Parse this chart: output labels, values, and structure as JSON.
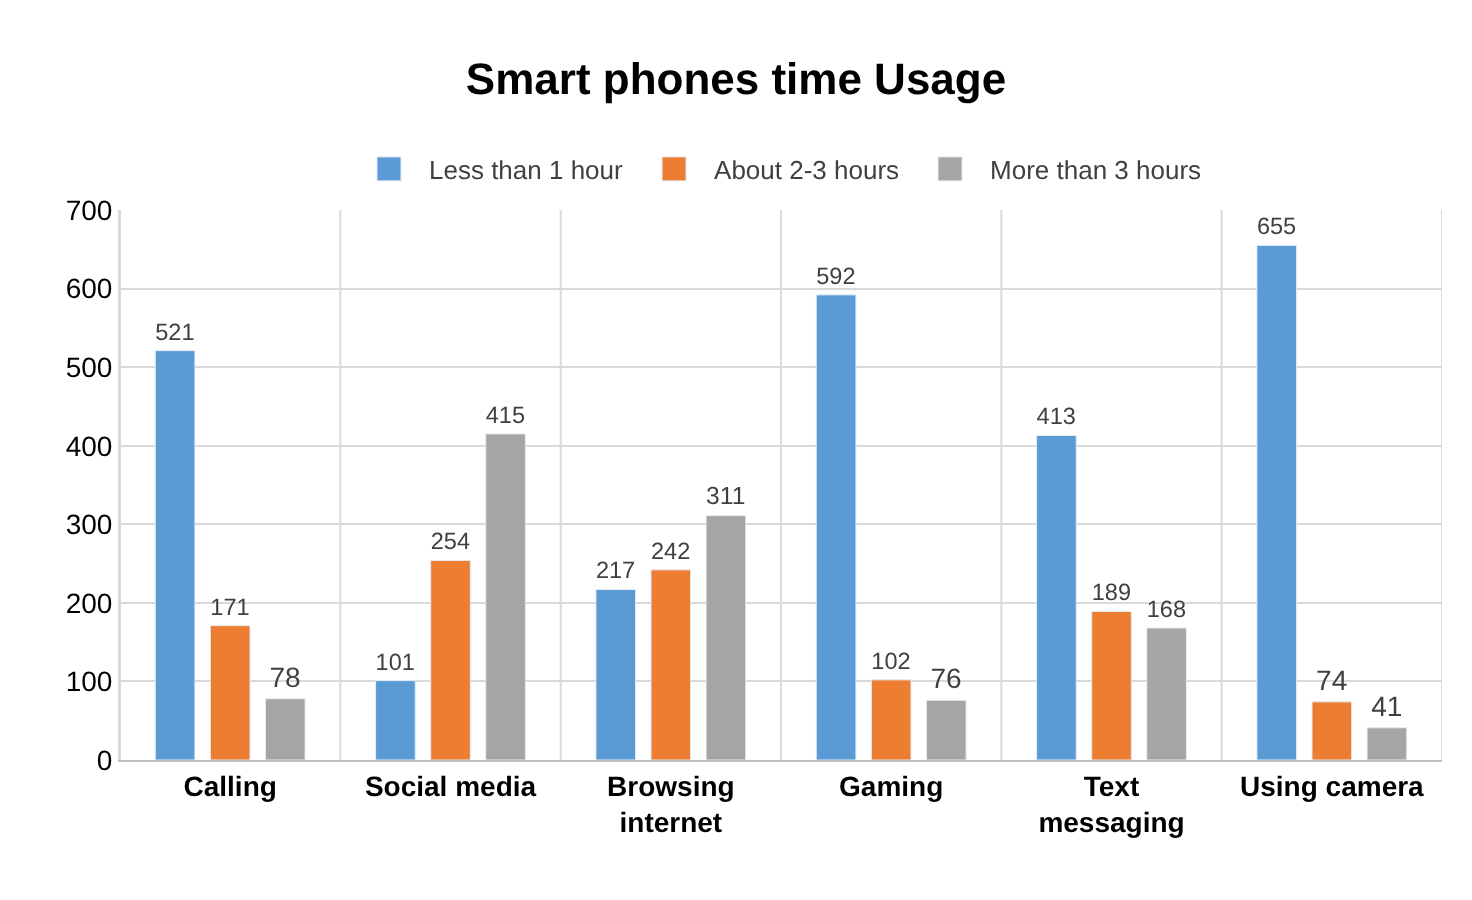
{
  "chart_data": {
    "type": "bar",
    "title": "Smart phones time Usage",
    "categories": [
      "Calling",
      "Social media",
      "Browsing internet",
      "Gaming",
      "Text messaging",
      "Using camera"
    ],
    "series": [
      {
        "name": "Less than 1 hour",
        "color": "#5b9bd5",
        "values": [
          521,
          101,
          217,
          592,
          413,
          655
        ]
      },
      {
        "name": "About 2-3 hours",
        "color": "#ed7d31",
        "values": [
          171,
          254,
          242,
          102,
          189,
          74
        ]
      },
      {
        "name": "More than 3 hours",
        "color": "#a5a5a5",
        "values": [
          78,
          415,
          311,
          76,
          168,
          41
        ]
      }
    ],
    "ylim": [
      0,
      700
    ],
    "yticks": [
      0,
      100,
      200,
      300,
      400,
      500,
      600,
      700
    ],
    "grid": true,
    "legend": "top",
    "data_labels": true
  }
}
